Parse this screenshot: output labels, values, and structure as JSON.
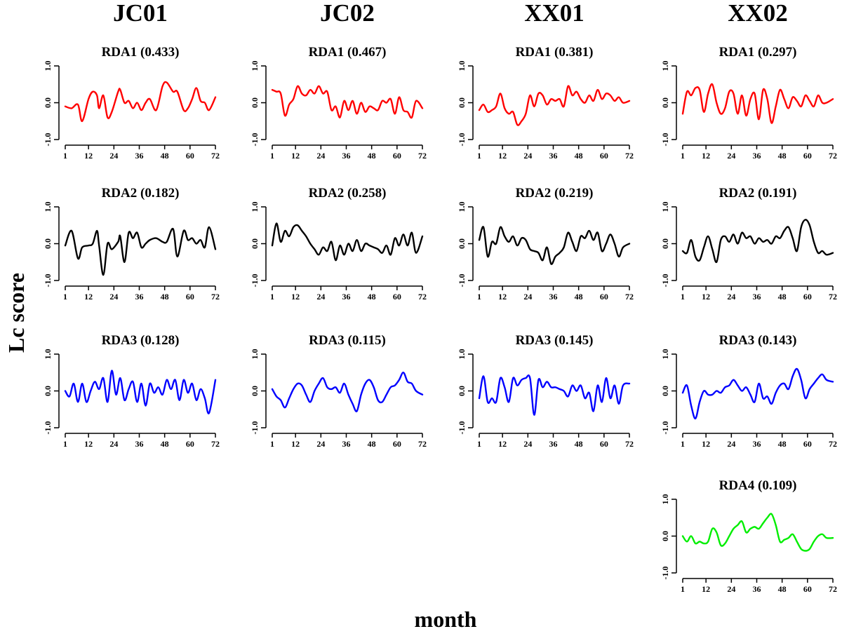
{
  "figure": {
    "ylabel": "Lc score",
    "xlabel": "month"
  },
  "chart_data": {
    "type": "line",
    "sites": [
      "JC01",
      "JC02",
      "XX01",
      "XX02"
    ],
    "xlim": [
      1,
      72
    ],
    "ylim": [
      -1.0,
      1.0
    ],
    "xticks": [
      1,
      12,
      24,
      36,
      48,
      60,
      72
    ],
    "yticks": [
      -1.0,
      0.0,
      1.0
    ],
    "ytick_labels": [
      "-1.0",
      "0.0",
      "1.0"
    ],
    "colors": {
      "RDA1": "#ff0000",
      "RDA2": "#000000",
      "RDA3": "#0000ff",
      "RDA4": "#00ee00"
    },
    "panels": [
      {
        "site": "JC01",
        "axis": "RDA1",
        "title": "RDA1 (0.433)",
        "row": 0,
        "col": 0,
        "x": [
          1,
          4,
          7,
          9,
          12,
          14,
          16,
          17,
          19,
          21,
          23,
          26,
          27,
          29,
          31,
          33,
          35,
          37,
          39,
          41,
          44,
          47,
          49,
          52,
          54,
          57,
          59,
          61,
          63,
          65,
          67,
          69,
          72
        ],
        "y": [
          -0.1,
          -0.15,
          -0.05,
          -0.5,
          0.1,
          0.3,
          0.2,
          -0.15,
          0.2,
          -0.4,
          -0.25,
          0.3,
          0.35,
          0.0,
          0.05,
          -0.15,
          0.0,
          -0.2,
          0.0,
          0.1,
          -0.2,
          0.45,
          0.55,
          0.3,
          0.3,
          -0.2,
          -0.15,
          0.1,
          0.4,
          0.05,
          0.0,
          -0.2,
          0.15
        ]
      },
      {
        "site": "JC01",
        "axis": "RDA2",
        "title": "RDA2 (0.182)",
        "row": 1,
        "col": 0,
        "x": [
          1,
          4,
          7,
          9,
          12,
          14,
          16,
          17,
          19,
          21,
          23,
          26,
          27,
          29,
          31,
          33,
          35,
          37,
          39,
          41,
          44,
          47,
          49,
          52,
          54,
          57,
          59,
          61,
          63,
          65,
          67,
          69,
          72
        ],
        "y": [
          -0.05,
          0.35,
          -0.4,
          -0.1,
          -0.05,
          0.0,
          0.35,
          -0.05,
          -0.85,
          0.0,
          -0.15,
          0.05,
          0.2,
          -0.5,
          0.3,
          0.15,
          0.3,
          -0.1,
          0.0,
          0.1,
          0.15,
          0.05,
          0.05,
          0.4,
          -0.35,
          0.35,
          0.1,
          0.15,
          0.0,
          0.1,
          -0.1,
          0.45,
          -0.15
        ]
      },
      {
        "site": "JC01",
        "axis": "RDA3",
        "title": "RDA3 (0.128)",
        "row": 2,
        "col": 0,
        "x": [
          1,
          3,
          5,
          7,
          9,
          11,
          13,
          15,
          17,
          19,
          21,
          23,
          25,
          27,
          29,
          31,
          33,
          35,
          37,
          39,
          41,
          43,
          45,
          47,
          49,
          51,
          53,
          55,
          57,
          59,
          61,
          63,
          65,
          67,
          69,
          72
        ],
        "y": [
          0.0,
          -0.15,
          0.2,
          -0.3,
          0.2,
          -0.3,
          0.0,
          0.25,
          0.05,
          0.35,
          -0.3,
          0.55,
          -0.1,
          0.35,
          -0.25,
          0.05,
          0.25,
          -0.3,
          0.2,
          -0.4,
          0.2,
          -0.05,
          0.1,
          -0.1,
          0.3,
          0.05,
          0.3,
          -0.25,
          0.3,
          -0.05,
          0.2,
          -0.25,
          0.05,
          -0.2,
          -0.6,
          0.3
        ]
      },
      {
        "site": "JC02",
        "axis": "RDA1",
        "title": "RDA1 (0.467)",
        "row": 0,
        "col": 1,
        "x": [
          1,
          3,
          5,
          7,
          9,
          11,
          13,
          15,
          17,
          19,
          21,
          23,
          25,
          27,
          29,
          31,
          33,
          35,
          37,
          39,
          41,
          43,
          45,
          47,
          49,
          51,
          53,
          55,
          57,
          59,
          61,
          63,
          65,
          67,
          69,
          72
        ],
        "y": [
          0.35,
          0.3,
          0.25,
          -0.35,
          -0.05,
          0.1,
          0.45,
          0.25,
          0.2,
          0.35,
          0.25,
          0.45,
          0.25,
          0.3,
          -0.2,
          -0.1,
          -0.4,
          0.05,
          -0.2,
          0.05,
          -0.3,
          0.0,
          -0.25,
          -0.1,
          -0.15,
          -0.2,
          0.05,
          0.0,
          0.1,
          -0.3,
          0.15,
          -0.2,
          -0.25,
          -0.4,
          0.05,
          -0.15
        ]
      },
      {
        "site": "JC02",
        "axis": "RDA2",
        "title": "RDA2 (0.258)",
        "row": 1,
        "col": 1,
        "x": [
          1,
          3,
          5,
          7,
          9,
          11,
          13,
          15,
          17,
          19,
          21,
          23,
          25,
          27,
          29,
          31,
          33,
          35,
          37,
          39,
          41,
          43,
          45,
          47,
          49,
          51,
          53,
          55,
          57,
          59,
          61,
          63,
          65,
          67,
          69,
          72
        ],
        "y": [
          -0.05,
          0.55,
          0.05,
          0.35,
          0.2,
          0.45,
          0.5,
          0.35,
          0.2,
          0.0,
          -0.15,
          -0.3,
          -0.1,
          -0.2,
          0.05,
          -0.45,
          -0.05,
          -0.3,
          0.0,
          -0.2,
          0.1,
          -0.2,
          0.0,
          -0.05,
          -0.1,
          -0.15,
          -0.25,
          -0.05,
          -0.3,
          0.15,
          -0.05,
          0.25,
          -0.05,
          0.3,
          -0.25,
          0.2
        ]
      },
      {
        "site": "JC02",
        "axis": "RDA3",
        "title": "RDA3 (0.115)",
        "row": 2,
        "col": 1,
        "x": [
          1,
          3,
          5,
          7,
          9,
          11,
          13,
          15,
          17,
          19,
          21,
          23,
          25,
          27,
          29,
          31,
          33,
          35,
          37,
          39,
          41,
          43,
          45,
          47,
          49,
          51,
          53,
          55,
          57,
          59,
          61,
          63,
          65,
          67,
          69,
          72
        ],
        "y": [
          0.05,
          -0.15,
          -0.25,
          -0.45,
          -0.2,
          0.05,
          0.2,
          0.15,
          -0.1,
          -0.3,
          0.0,
          0.2,
          0.35,
          0.1,
          0.05,
          0.1,
          -0.05,
          0.2,
          -0.1,
          -0.35,
          -0.55,
          -0.1,
          0.2,
          0.3,
          0.1,
          -0.25,
          -0.3,
          -0.1,
          0.1,
          0.15,
          0.3,
          0.5,
          0.25,
          0.2,
          0.0,
          -0.1
        ]
      },
      {
        "site": "XX01",
        "axis": "RDA1",
        "title": "RDA1 (0.381)",
        "row": 0,
        "col": 2,
        "x": [
          1,
          3,
          5,
          7,
          9,
          11,
          13,
          15,
          17,
          19,
          21,
          23,
          25,
          27,
          29,
          31,
          33,
          35,
          37,
          39,
          41,
          43,
          45,
          47,
          49,
          51,
          53,
          55,
          57,
          59,
          61,
          63,
          65,
          67,
          69,
          72
        ],
        "y": [
          -0.2,
          -0.05,
          -0.25,
          -0.2,
          -0.1,
          0.25,
          -0.15,
          -0.3,
          -0.25,
          -0.6,
          -0.5,
          -0.3,
          0.2,
          -0.1,
          0.25,
          0.2,
          -0.05,
          0.1,
          0.05,
          0.1,
          -0.1,
          0.45,
          0.2,
          0.3,
          0.1,
          0.0,
          0.2,
          0.05,
          0.35,
          0.1,
          0.25,
          0.2,
          0.05,
          0.15,
          0.0,
          0.05
        ]
      },
      {
        "site": "XX01",
        "axis": "RDA2",
        "title": "RDA2  (0.219)",
        "row": 1,
        "col": 2,
        "x": [
          1,
          3,
          5,
          7,
          9,
          11,
          13,
          15,
          17,
          19,
          21,
          23,
          25,
          27,
          29,
          31,
          33,
          35,
          37,
          39,
          41,
          43,
          45,
          47,
          49,
          51,
          53,
          55,
          57,
          59,
          61,
          63,
          65,
          67,
          69,
          72
        ],
        "y": [
          0.1,
          0.45,
          -0.35,
          0.05,
          0.0,
          0.45,
          0.2,
          0.05,
          0.2,
          -0.05,
          0.15,
          0.1,
          -0.15,
          -0.2,
          -0.25,
          -0.45,
          -0.1,
          -0.55,
          -0.35,
          -0.25,
          -0.1,
          0.3,
          0.05,
          -0.2,
          0.2,
          0.15,
          0.35,
          0.1,
          0.3,
          -0.2,
          0.0,
          0.25,
          0.0,
          -0.35,
          -0.1,
          0.0
        ]
      },
      {
        "site": "XX01",
        "axis": "RDA3",
        "title": "RDA3  (0.145)",
        "row": 2,
        "col": 2,
        "x": [
          1,
          3,
          5,
          7,
          9,
          11,
          13,
          15,
          17,
          19,
          21,
          23,
          25,
          27,
          29,
          31,
          33,
          35,
          37,
          39,
          41,
          43,
          45,
          47,
          49,
          51,
          53,
          55,
          57,
          59,
          61,
          63,
          65,
          67,
          69,
          72
        ],
        "y": [
          -0.2,
          0.4,
          -0.3,
          -0.2,
          -0.3,
          0.35,
          0.1,
          -0.3,
          0.35,
          0.15,
          0.3,
          0.35,
          0.35,
          -0.65,
          0.3,
          0.1,
          0.25,
          0.1,
          0.1,
          0.05,
          0.0,
          -0.15,
          0.15,
          0.0,
          0.15,
          -0.2,
          -0.05,
          -0.55,
          0.15,
          -0.3,
          0.35,
          -0.2,
          0.15,
          -0.35,
          0.15,
          0.2
        ]
      },
      {
        "site": "XX02",
        "axis": "RDA1",
        "title": "RDA1 (0.297)",
        "row": 0,
        "col": 3,
        "x": [
          1,
          3,
          5,
          7,
          9,
          11,
          13,
          15,
          17,
          19,
          21,
          23,
          25,
          27,
          29,
          31,
          33,
          35,
          37,
          39,
          41,
          43,
          45,
          47,
          49,
          51,
          53,
          55,
          57,
          59,
          61,
          63,
          65,
          67,
          69,
          72
        ],
        "y": [
          -0.3,
          0.3,
          0.2,
          0.4,
          0.35,
          -0.25,
          0.25,
          0.5,
          0.0,
          -0.3,
          -0.15,
          0.3,
          0.25,
          -0.3,
          0.2,
          -0.35,
          0.1,
          0.25,
          -0.45,
          0.35,
          0.1,
          -0.55,
          -0.1,
          0.35,
          0.1,
          -0.15,
          0.15,
          0.05,
          -0.1,
          0.2,
          0.05,
          -0.1,
          0.2,
          0.0,
          0.0,
          0.1
        ]
      },
      {
        "site": "XX02",
        "axis": "RDA2",
        "title": "RDA2 (0.191)",
        "row": 1,
        "col": 3,
        "x": [
          1,
          3,
          5,
          7,
          9,
          11,
          13,
          15,
          17,
          19,
          21,
          23,
          25,
          27,
          29,
          31,
          33,
          35,
          37,
          39,
          41,
          43,
          45,
          47,
          49,
          51,
          53,
          55,
          57,
          59,
          61,
          63,
          65,
          67,
          69,
          72
        ],
        "y": [
          -0.2,
          -0.25,
          0.1,
          -0.35,
          -0.45,
          -0.1,
          0.2,
          -0.15,
          -0.5,
          0.1,
          0.2,
          0.05,
          0.25,
          0.0,
          0.3,
          0.15,
          0.2,
          0.0,
          0.15,
          0.05,
          0.1,
          0.0,
          0.2,
          0.15,
          0.35,
          0.45,
          0.15,
          -0.2,
          0.45,
          0.65,
          0.5,
          0.05,
          -0.25,
          -0.2,
          -0.3,
          -0.25
        ]
      },
      {
        "site": "XX02",
        "axis": "RDA3",
        "title": "RDA3 (0.143)",
        "row": 2,
        "col": 3,
        "x": [
          1,
          3,
          5,
          7,
          9,
          11,
          13,
          15,
          17,
          19,
          21,
          23,
          25,
          27,
          29,
          31,
          33,
          35,
          37,
          39,
          41,
          43,
          45,
          47,
          49,
          51,
          53,
          55,
          57,
          59,
          61,
          63,
          65,
          67,
          69,
          72
        ],
        "y": [
          -0.05,
          0.15,
          -0.4,
          -0.75,
          -0.3,
          0.0,
          -0.1,
          -0.1,
          0.0,
          -0.05,
          0.1,
          0.15,
          0.3,
          0.15,
          0.0,
          0.1,
          -0.1,
          -0.3,
          0.2,
          -0.2,
          -0.15,
          -0.35,
          -0.05,
          0.15,
          0.2,
          0.05,
          0.4,
          0.6,
          0.3,
          -0.2,
          0.05,
          0.2,
          0.35,
          0.45,
          0.3,
          0.25
        ]
      },
      {
        "site": "XX02",
        "axis": "RDA4",
        "title": "RDA4 (0.109)",
        "row": 3,
        "col": 3,
        "x": [
          1,
          3,
          5,
          7,
          9,
          11,
          13,
          15,
          17,
          19,
          21,
          23,
          25,
          27,
          29,
          31,
          33,
          35,
          37,
          39,
          41,
          43,
          45,
          47,
          49,
          51,
          53,
          55,
          57,
          59,
          61,
          63,
          65,
          67,
          69,
          72
        ],
        "y": [
          0.0,
          -0.15,
          0.0,
          -0.2,
          -0.15,
          -0.2,
          -0.15,
          0.2,
          0.1,
          -0.25,
          -0.2,
          0.0,
          0.2,
          0.3,
          0.4,
          0.1,
          0.2,
          0.25,
          0.2,
          0.35,
          0.5,
          0.6,
          0.3,
          -0.15,
          -0.1,
          -0.05,
          0.05,
          -0.15,
          -0.35,
          -0.4,
          -0.35,
          -0.15,
          0.0,
          0.05,
          -0.05,
          -0.05
        ]
      }
    ]
  }
}
